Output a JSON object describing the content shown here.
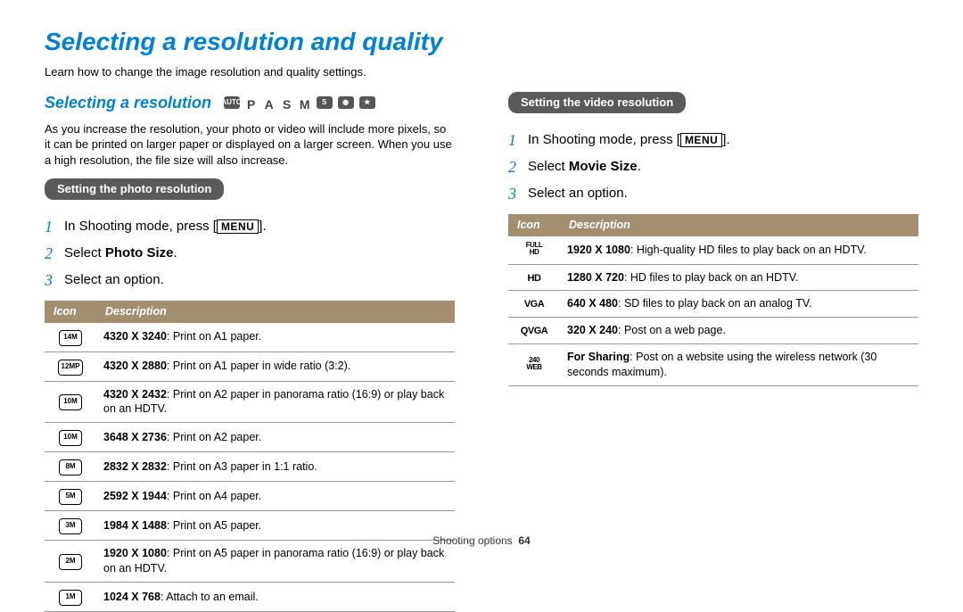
{
  "title": "Selecting a resolution and quality",
  "intro": "Learn how to change the image resolution and quality settings.",
  "left": {
    "heading": "Selecting a resolution",
    "mode_icons": [
      "AUTO",
      "P",
      "A",
      "S",
      "M",
      "S",
      "scene",
      "star"
    ],
    "body": "As you increase the resolution, your photo or video will include more pixels, so it can be printed on larger paper or displayed on a larger screen. When you use a high resolution, the file size will also increase.",
    "pill": "Setting the photo resolution",
    "steps": [
      {
        "pre": "In Shooting mode, press [",
        "menu": "MENU",
        "post": "]."
      },
      {
        "pre": "Select ",
        "bold": "Photo Size",
        "post": "."
      },
      {
        "pre": "Select an option."
      }
    ],
    "table": {
      "headers": [
        "Icon",
        "Description"
      ],
      "rows": [
        {
          "icon": "14M",
          "size": "4320 X 3240",
          "desc": ": Print on A1 paper."
        },
        {
          "icon": "12MP",
          "size": "4320 X 2880",
          "desc": ": Print on A1 paper in wide ratio (3:2)."
        },
        {
          "icon": "10M",
          "size": "4320 X 2432",
          "desc": ": Print on A2 paper in panorama ratio (16:9) or play back on an HDTV."
        },
        {
          "icon": "10M",
          "size": "3648 X 2736",
          "desc": ": Print on A2 paper."
        },
        {
          "icon": "8M",
          "size": "2832 X 2832",
          "desc": ": Print on A3 paper in 1:1 ratio."
        },
        {
          "icon": "5M",
          "size": "2592 X 1944",
          "desc": ": Print on A4 paper."
        },
        {
          "icon": "3M",
          "size": "1984 X 1488",
          "desc": ": Print on A5 paper."
        },
        {
          "icon": "2M",
          "size": "1920 X 1080",
          "desc": ": Print on A5 paper in panorama ratio (16:9) or play back on an HDTV."
        },
        {
          "icon": "1M",
          "size": "1024 X 768",
          "desc": ": Attach to an email."
        }
      ]
    }
  },
  "right": {
    "pill": "Setting the video resolution",
    "steps": [
      {
        "pre": "In Shooting mode, press [",
        "menu": "MENU",
        "post": "]."
      },
      {
        "pre": "Select ",
        "bold": "Movie Size",
        "post": "."
      },
      {
        "pre": "Select an option."
      }
    ],
    "table": {
      "headers": [
        "Icon",
        "Description"
      ],
      "rows": [
        {
          "icon": "FULL HD",
          "size": "1920 X 1080",
          "desc": ": High-quality HD files to play back on an HDTV."
        },
        {
          "icon": "HD",
          "size": "1280 X 720",
          "desc": ": HD files to play back on an HDTV."
        },
        {
          "icon": "VGA",
          "size": "640 X 480",
          "desc": ": SD files to play back on an analog TV."
        },
        {
          "icon": "QVGA",
          "size": "320 X 240",
          "desc": ": Post on a web page."
        },
        {
          "icon": "240 WEB",
          "size": "For Sharing",
          "desc": ": Post on a website using the wireless network (30 seconds maximum)."
        }
      ]
    }
  },
  "footer": {
    "section": "Shooting options",
    "page": "64"
  },
  "colors": {
    "accent": "#0080d6",
    "pill_bg": "#5a5a5a",
    "table_header_bg": "#a38f6f",
    "border": "#999999"
  }
}
